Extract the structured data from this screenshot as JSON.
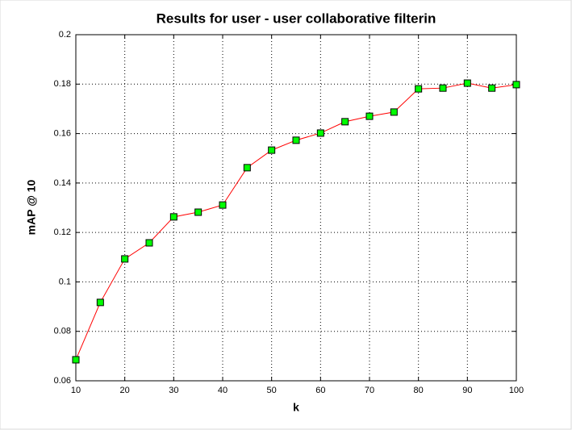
{
  "chart_data": {
    "type": "line",
    "title": "Results for user - user collaborative filterin",
    "x_label": "k",
    "y_label": "mAP @ 10",
    "x": [
      10,
      15,
      20,
      25,
      30,
      35,
      40,
      45,
      50,
      55,
      60,
      65,
      70,
      75,
      80,
      85,
      90,
      95,
      100
    ],
    "series": [
      {
        "name": "mAP @ 10",
        "color": "#ff0000",
        "marker_color": "#00ff00",
        "values": [
          0.0685,
          0.0917,
          0.1093,
          0.1158,
          0.1263,
          0.1282,
          0.1311,
          0.1462,
          0.1533,
          0.1573,
          0.1602,
          0.1648,
          0.167,
          0.1687,
          0.1781,
          0.1784,
          0.1804,
          0.1784,
          0.1798
        ]
      }
    ],
    "xlim": [
      10,
      100
    ],
    "xticks": [
      10,
      20,
      30,
      40,
      50,
      60,
      70,
      80,
      90,
      100
    ],
    "ylim": [
      0.06,
      0.2
    ],
    "yticks": [
      0.06,
      0.08,
      0.1,
      0.12,
      0.14,
      0.16,
      0.18,
      0.2
    ],
    "grid": true
  }
}
